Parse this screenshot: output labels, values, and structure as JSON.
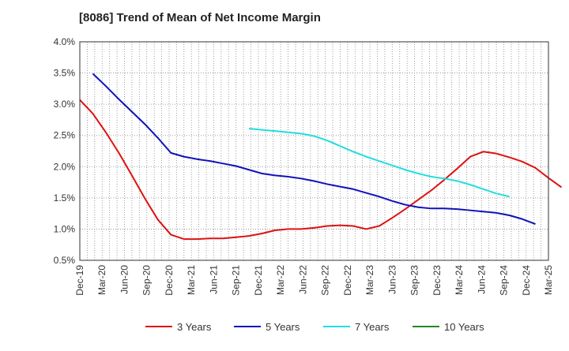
{
  "chart_data": {
    "type": "line",
    "title": "[8086]  Trend of Mean of Net Income Margin",
    "xlabel": "",
    "ylabel": "",
    "ylim": [
      0.5,
      4.0
    ],
    "y_ticks": [
      0.5,
      1.0,
      1.5,
      2.0,
      2.5,
      3.0,
      3.5,
      4.0
    ],
    "y_tick_labels": [
      "0.5%",
      "1.0%",
      "1.5%",
      "2.0%",
      "2.5%",
      "3.0%",
      "3.5%",
      "4.0%"
    ],
    "x_tick_labels": [
      "Dec-19",
      "Mar-20",
      "Jun-20",
      "Sep-20",
      "Dec-20",
      "Mar-21",
      "Jun-21",
      "Sep-21",
      "Dec-21",
      "Mar-22",
      "Jun-22",
      "Sep-22",
      "Dec-22",
      "Mar-23",
      "Jun-23",
      "Sep-23",
      "Dec-23",
      "Mar-24",
      "Jun-24",
      "Sep-24",
      "Dec-24",
      "Mar-25"
    ],
    "grid": true,
    "legend_position": "bottom",
    "series": [
      {
        "name": "3 Years",
        "color": "#dd1111",
        "start_index": 0,
        "values": [
          3.07,
          2.85,
          2.55,
          2.22,
          1.86,
          1.49,
          1.15,
          0.91,
          0.84,
          0.84,
          0.85,
          0.85,
          0.87,
          0.89,
          0.93,
          0.98,
          1.0,
          1.0,
          1.02,
          1.05,
          1.06,
          1.05,
          1.0,
          1.05,
          1.18,
          1.32,
          1.47,
          1.62,
          1.79,
          1.97,
          2.16,
          2.24,
          2.21,
          2.15,
          2.08,
          1.98,
          1.82,
          1.67
        ]
      },
      {
        "name": "5 Years",
        "color": "#1111bb",
        "start_index": 1,
        "values": [
          3.49,
          3.29,
          3.08,
          2.88,
          2.68,
          2.46,
          2.22,
          2.16,
          2.12,
          2.09,
          2.05,
          2.01,
          1.95,
          1.89,
          1.86,
          1.84,
          1.81,
          1.77,
          1.72,
          1.68,
          1.64,
          1.58,
          1.52,
          1.45,
          1.39,
          1.35,
          1.33,
          1.33,
          1.32,
          1.3,
          1.28,
          1.26,
          1.22,
          1.16,
          1.08
        ]
      },
      {
        "name": "7 Years",
        "color": "#22dddd",
        "start_index": 13,
        "values": [
          2.61,
          2.59,
          2.57,
          2.55,
          2.53,
          2.49,
          2.42,
          2.33,
          2.24,
          2.16,
          2.09,
          2.02,
          1.95,
          1.89,
          1.84,
          1.81,
          1.77,
          1.71,
          1.64,
          1.57,
          1.52
        ]
      },
      {
        "name": "10 Years",
        "color": "#228822",
        "start_index": 0,
        "values": []
      }
    ]
  }
}
